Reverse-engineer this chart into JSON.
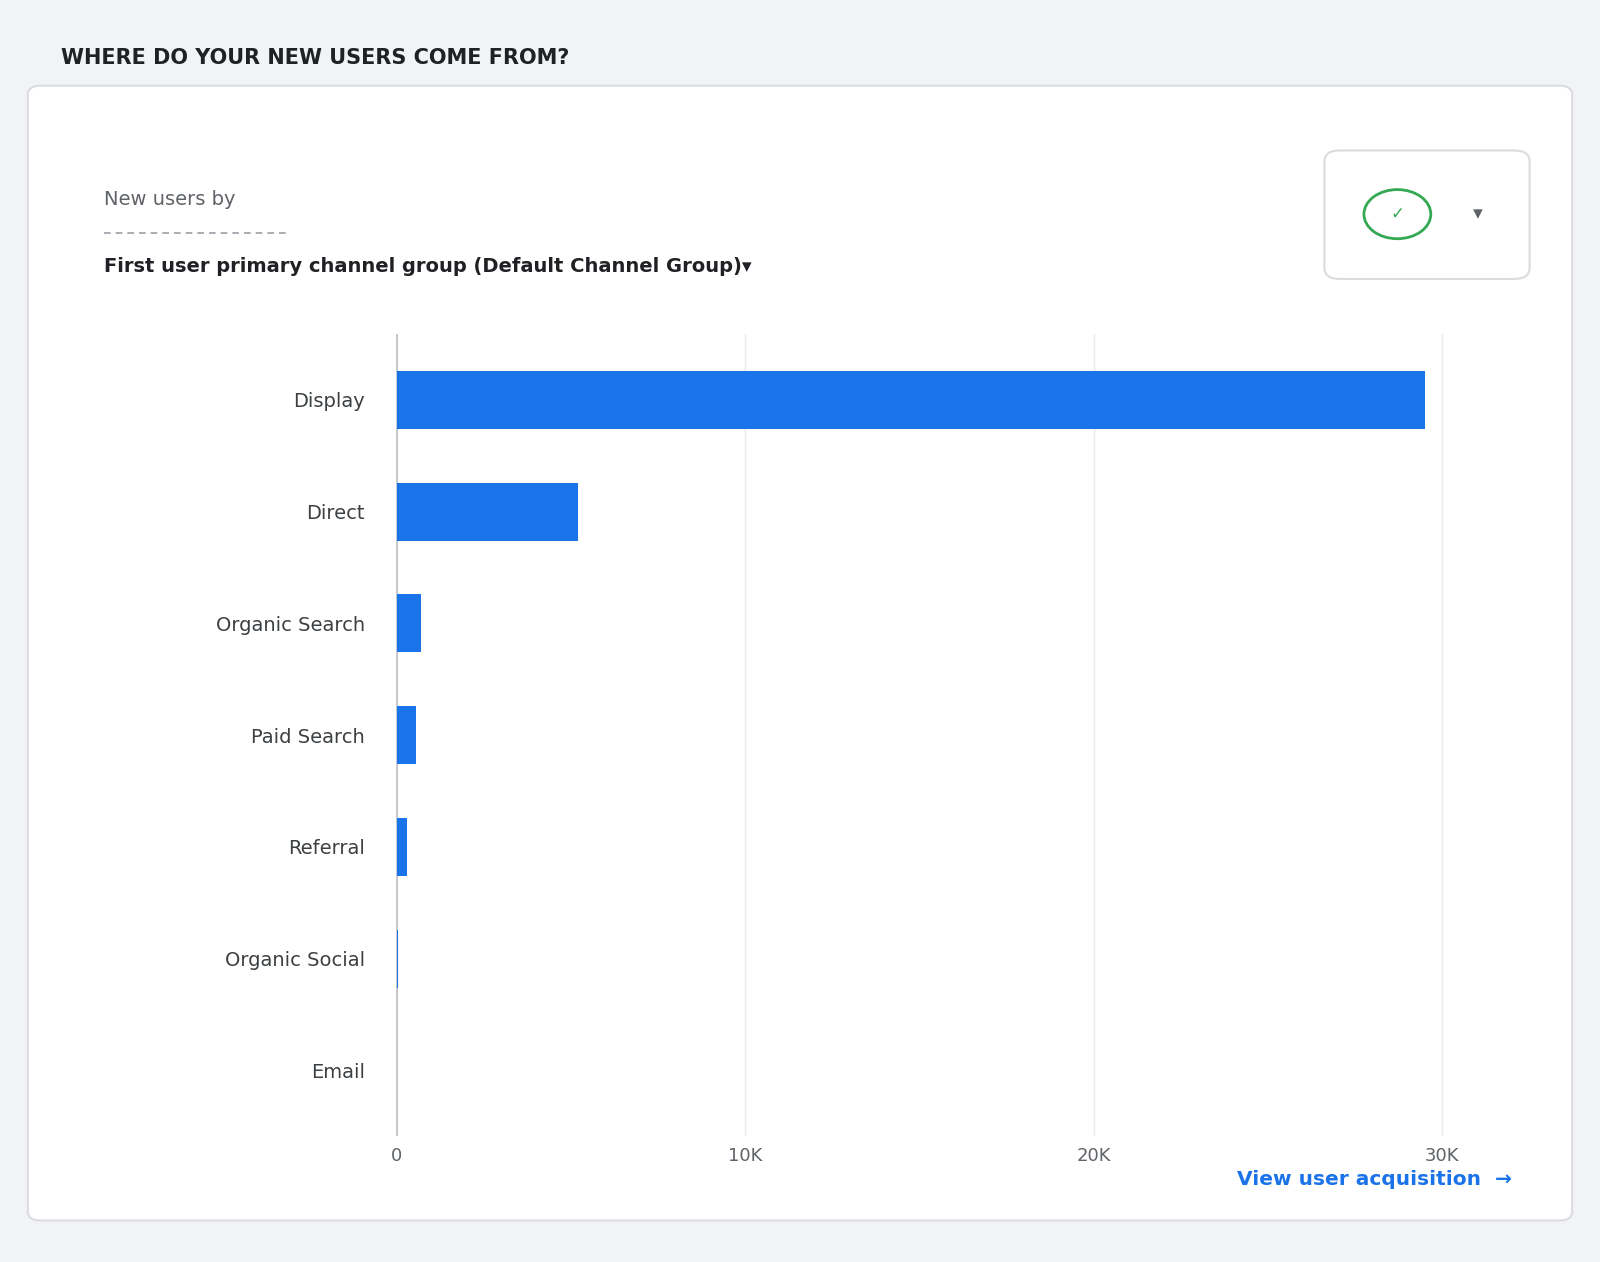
{
  "page_title": "WHERE DO YOUR NEW USERS COME FROM?",
  "card_title_line1": "New users by",
  "card_title_line2": "First user primary channel group (Default Channel Group)▾",
  "categories": [
    "Display",
    "Direct",
    "Organic Search",
    "Paid Search",
    "Referral",
    "Organic Social",
    "Email"
  ],
  "values": [
    29500,
    5200,
    700,
    550,
    280,
    30,
    10
  ],
  "bar_color": "#1a73e8",
  "background_outer": "#f1f3f4",
  "background_card": "#ffffff",
  "axis_label_color": "#3c4043",
  "page_title_color": "#202124",
  "grid_color": "#e8eaed",
  "tick_label_color": "#5f6368",
  "link_color": "#1a73e8",
  "link_text": "View user acquisition  →",
  "xlim": [
    -600,
    32000
  ],
  "xticks": [
    0,
    10000,
    20000,
    30000
  ],
  "xtick_labels": [
    "0",
    "10K",
    "20K",
    "30K"
  ],
  "bar_height": 0.52,
  "card_border_color": "#dadce0",
  "vline_color": "#bdc1c6",
  "check_color": "#34a853",
  "arrow_color": "#5f6368"
}
